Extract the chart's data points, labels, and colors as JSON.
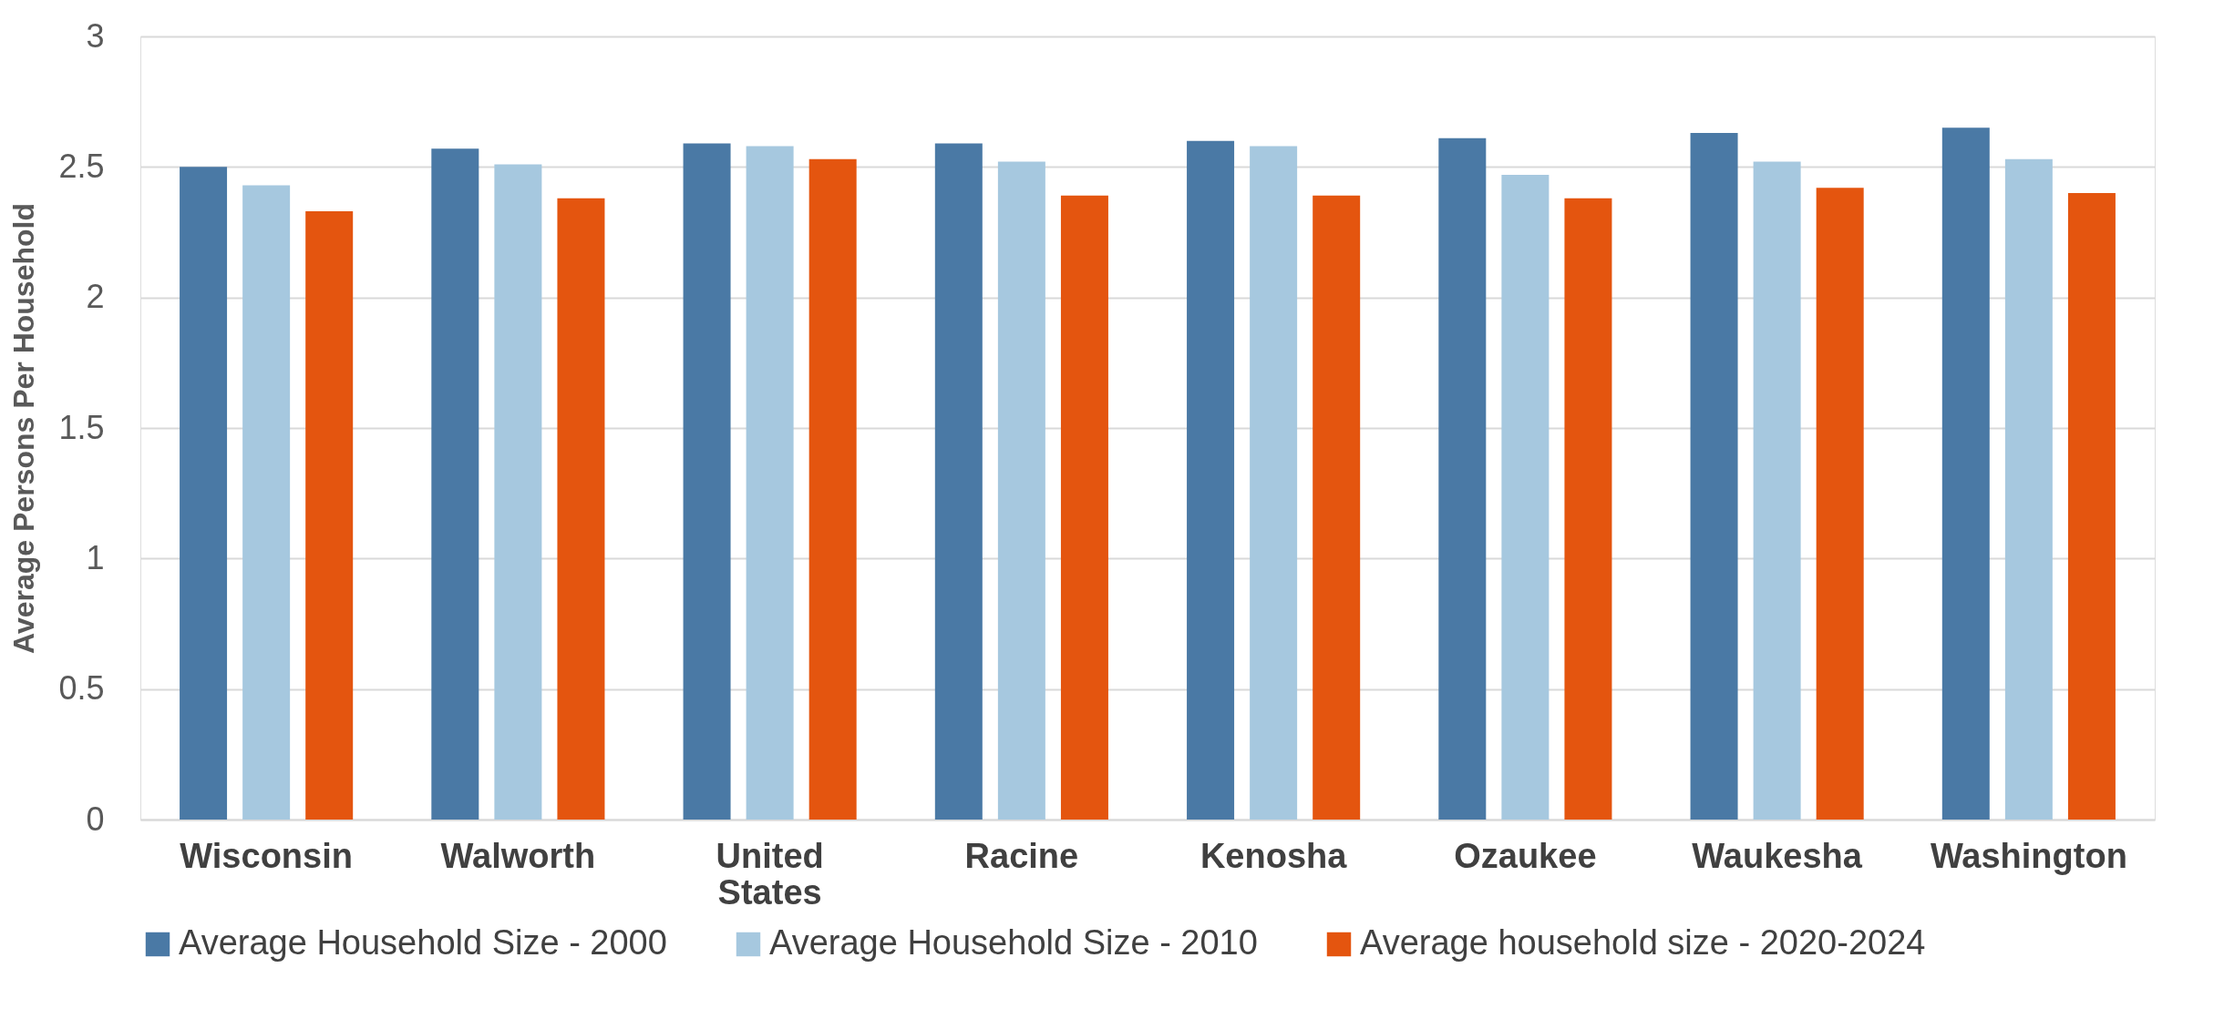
{
  "chart_data": {
    "type": "bar",
    "ylabel": "Average Persons Per Household",
    "categories": [
      "Wisconsin",
      "Walworth",
      "United States",
      "Racine",
      "Kenosha",
      "Ozaukee",
      "Waukesha",
      "Washington"
    ],
    "series": [
      {
        "name": "Average Household Size - 2000",
        "color": "#4a79a5",
        "values": [
          2.5,
          2.57,
          2.59,
          2.59,
          2.6,
          2.61,
          2.63,
          2.65
        ]
      },
      {
        "name": "Average Household Size - 2010",
        "color": "#a6c8df",
        "values": [
          2.43,
          2.51,
          2.58,
          2.52,
          2.58,
          2.47,
          2.52,
          2.53
        ]
      },
      {
        "name": "Average household size - 2020-2024",
        "color": "#e4550f",
        "values": [
          2.33,
          2.38,
          2.53,
          2.39,
          2.39,
          2.38,
          2.42,
          2.4
        ]
      }
    ],
    "ylim": [
      0,
      3
    ],
    "yticks": [
      0,
      0.5,
      1,
      1.5,
      2,
      2.5,
      3
    ],
    "grid": "y",
    "legend": "bottom"
  }
}
